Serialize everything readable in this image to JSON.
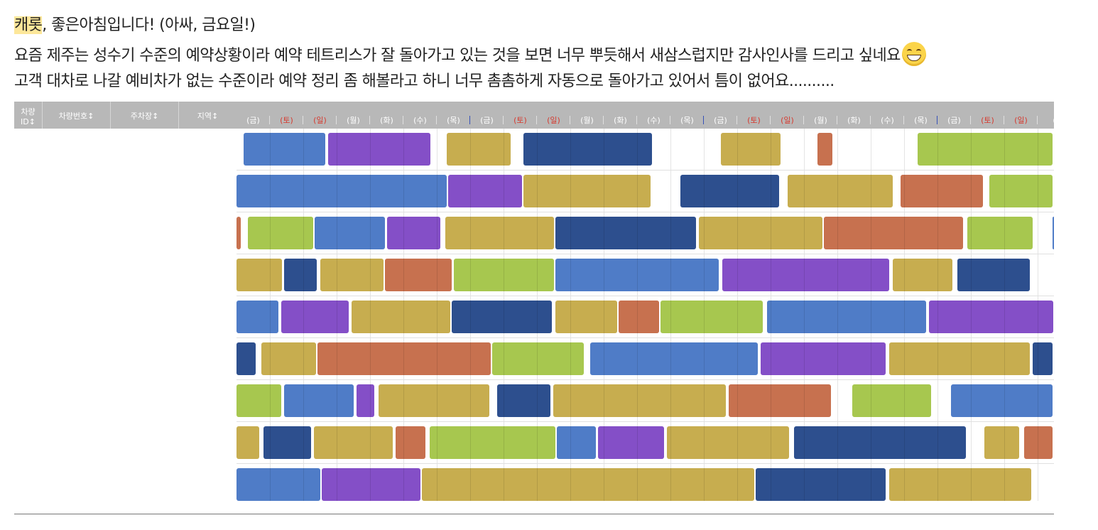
{
  "message": {
    "name_highlight": "캐롯",
    "line1_rest": ", 좋은아침입니다! (아싸, 금요일!)",
    "line2": "요즘 제주는 성수기 수준의 예약상황이라 예약 테트리스가 잘 돌아가고 있는 것을 보면 너무 뿌듯해서 새삼스럽지만 감사인사를 드리고 싶네요",
    "emoji": "grinning-face",
    "line3": "고객 대차로 나갈 예비차가 없는 수준이라 예약 정리 좀 해볼라고 하니 너무 촘촘하게 자동으로 돌아가고 있어서 틈이 없어요.........."
  },
  "table": {
    "columns": [
      {
        "key": "id",
        "label_line1": "차량",
        "label_line2": "ID↕"
      },
      {
        "key": "plate",
        "label_line1": "차량번호↕",
        "label_line2": ""
      },
      {
        "key": "lot",
        "label_line1": "주차장↕",
        "label_line2": ""
      },
      {
        "key": "region",
        "label_line1": "지역↕",
        "label_line2": ""
      }
    ],
    "days": [
      "(금)",
      "(토)",
      "(일)",
      "(월)",
      "(화)",
      "(수)",
      "(목)",
      "(금)",
      "(토)",
      "(일)",
      "(월)",
      "(화)",
      "(수)",
      "(목)",
      "(금)",
      "(토)",
      "(일)",
      "(월)",
      "(화)",
      "(수)",
      "(목)",
      "(금)",
      "(토)",
      "(일)",
      "("
    ],
    "weekend_days": [
      "(토)",
      "(일)"
    ]
  },
  "colors": {
    "blue": "#4f7cc7",
    "purple": "#844fc7",
    "gold": "#c7ad4f",
    "navy": "#2d4f8e",
    "orange": "#c7714f",
    "green": "#a7c74f",
    "header_bg": "#b8b8b8",
    "weekend_text": "#d63a2f",
    "highlight": "#fde79a"
  },
  "schedule_day_range": [
    0,
    24.5
  ],
  "schedule": [
    [
      [
        "blue",
        0.22,
        2.7
      ],
      [
        "purple",
        2.75,
        5.85
      ],
      [
        "gold",
        6.3,
        8.25
      ],
      [
        "navy",
        8.6,
        12.5
      ],
      [
        "gold",
        14.5,
        16.35
      ],
      [
        "orange",
        17.4,
        17.9
      ],
      [
        "green",
        20.4,
        24.5
      ]
    ],
    [
      [
        "blue",
        0,
        6.35
      ],
      [
        "purple",
        6.35,
        8.6
      ],
      [
        "gold",
        8.6,
        12.45
      ],
      [
        "navy",
        13.3,
        16.3
      ],
      [
        "gold",
        16.5,
        19.7
      ],
      [
        "orange",
        19.9,
        22.4
      ],
      [
        "green",
        22.55,
        24.5
      ]
    ],
    [
      [
        "orange",
        0,
        0.18
      ],
      [
        "green",
        0.33,
        2.35
      ],
      [
        "blue",
        2.35,
        4.5
      ],
      [
        "purple",
        4.5,
        6.15
      ],
      [
        "gold",
        6.25,
        9.55
      ],
      [
        "navy",
        9.55,
        13.8
      ],
      [
        "gold",
        13.85,
        17.6
      ],
      [
        "orange",
        17.6,
        21.8
      ],
      [
        "green",
        21.9,
        23.9
      ],
      [
        "blue",
        24.45,
        24.5
      ]
    ],
    [
      [
        "gold",
        0,
        1.4
      ],
      [
        "navy",
        1.42,
        2.45
      ],
      [
        "gold",
        2.5,
        4.45
      ],
      [
        "orange",
        4.45,
        6.5
      ],
      [
        "green",
        6.5,
        9.55
      ],
      [
        "blue",
        9.55,
        14.5
      ],
      [
        "purple",
        14.55,
        19.6
      ],
      [
        "gold",
        19.65,
        21.5
      ],
      [
        "navy",
        21.6,
        23.8
      ]
    ],
    [
      [
        "blue",
        0,
        1.3
      ],
      [
        "purple",
        1.33,
        3.4
      ],
      [
        "gold",
        3.45,
        6.45
      ],
      [
        "navy",
        6.45,
        9.5
      ],
      [
        "gold",
        9.55,
        11.45
      ],
      [
        "orange",
        11.45,
        12.7
      ],
      [
        "green",
        12.7,
        15.8
      ],
      [
        "blue",
        15.9,
        20.7
      ],
      [
        "purple",
        20.75,
        24.5
      ]
    ],
    [
      [
        "navy",
        0,
        0.62
      ],
      [
        "gold",
        0.75,
        2.42
      ],
      [
        "orange",
        2.42,
        7.65
      ],
      [
        "green",
        7.65,
        10.45
      ],
      [
        "blue",
        10.6,
        15.65
      ],
      [
        "purple",
        15.7,
        19.5
      ],
      [
        "gold",
        19.55,
        23.8
      ],
      [
        "navy",
        23.85,
        24.5
      ]
    ],
    [
      [
        "green",
        0,
        1.38
      ],
      [
        "blue",
        1.42,
        3.55
      ],
      [
        "purple",
        3.6,
        4.18
      ],
      [
        "gold",
        4.25,
        7.62
      ],
      [
        "navy",
        7.8,
        9.45
      ],
      [
        "gold",
        9.48,
        14.7
      ],
      [
        "orange",
        14.75,
        17.85
      ],
      [
        "green",
        18.45,
        20.85
      ],
      [
        "blue",
        21.4,
        24.5
      ]
    ],
    [
      [
        "gold",
        0,
        0.72
      ],
      [
        "navy",
        0.8,
        2.28
      ],
      [
        "gold",
        2.32,
        4.72
      ],
      [
        "orange",
        4.76,
        5.7
      ],
      [
        "green",
        5.78,
        9.6
      ],
      [
        "blue",
        9.6,
        10.8
      ],
      [
        "purple",
        10.82,
        12.85
      ],
      [
        "gold",
        12.9,
        16.6
      ],
      [
        "navy",
        16.7,
        21.9
      ],
      [
        "gold",
        22.4,
        23.5
      ],
      [
        "orange",
        23.6,
        24.5
      ]
    ],
    [
      [
        "blue",
        0,
        2.55
      ],
      [
        "purple",
        2.55,
        5.55
      ],
      [
        "gold",
        5.55,
        15.55
      ],
      [
        "navy",
        15.55,
        19.5
      ],
      [
        "gold",
        19.55,
        23.85
      ]
    ]
  ]
}
